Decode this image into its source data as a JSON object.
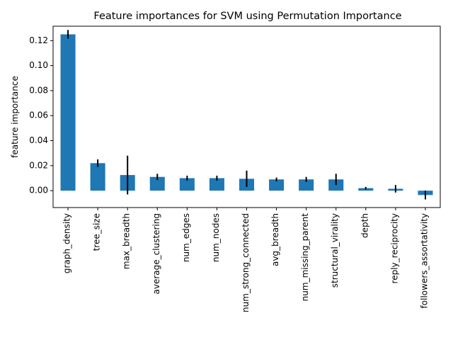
{
  "chart_data": {
    "type": "bar",
    "title": "Feature importances for SVM using Permutation Importance",
    "xlabel": "",
    "ylabel": "feature importance",
    "categories": [
      "graph_density",
      "tree_size",
      "max_breadth",
      "average_clustering",
      "num_edges",
      "num_nodes",
      "num_strong_connected",
      "avg_breadth",
      "num_missing_parent",
      "structural_virality",
      "depth",
      "reply_reciprocity",
      "followers_assortativity"
    ],
    "values": [
      0.125,
      0.022,
      0.0125,
      0.011,
      0.01,
      0.01,
      0.0095,
      0.009,
      0.009,
      0.009,
      0.002,
      0.0015,
      -0.0035
    ],
    "errors": [
      0.0035,
      0.003,
      0.0155,
      0.0025,
      0.002,
      0.002,
      0.0065,
      0.0015,
      0.002,
      0.0045,
      0.001,
      0.003,
      0.0035
    ],
    "ylim": [
      -0.0135,
      0.1315
    ],
    "yticks": [
      0.0,
      0.02,
      0.04,
      0.06,
      0.08,
      0.1,
      0.12
    ],
    "ytick_labels": [
      "0.00",
      "0.02",
      "0.04",
      "0.06",
      "0.08",
      "0.10",
      "0.12"
    ],
    "grid": false,
    "legend": "none",
    "bar_color": "#1f77b4",
    "error_color": "#000000"
  }
}
